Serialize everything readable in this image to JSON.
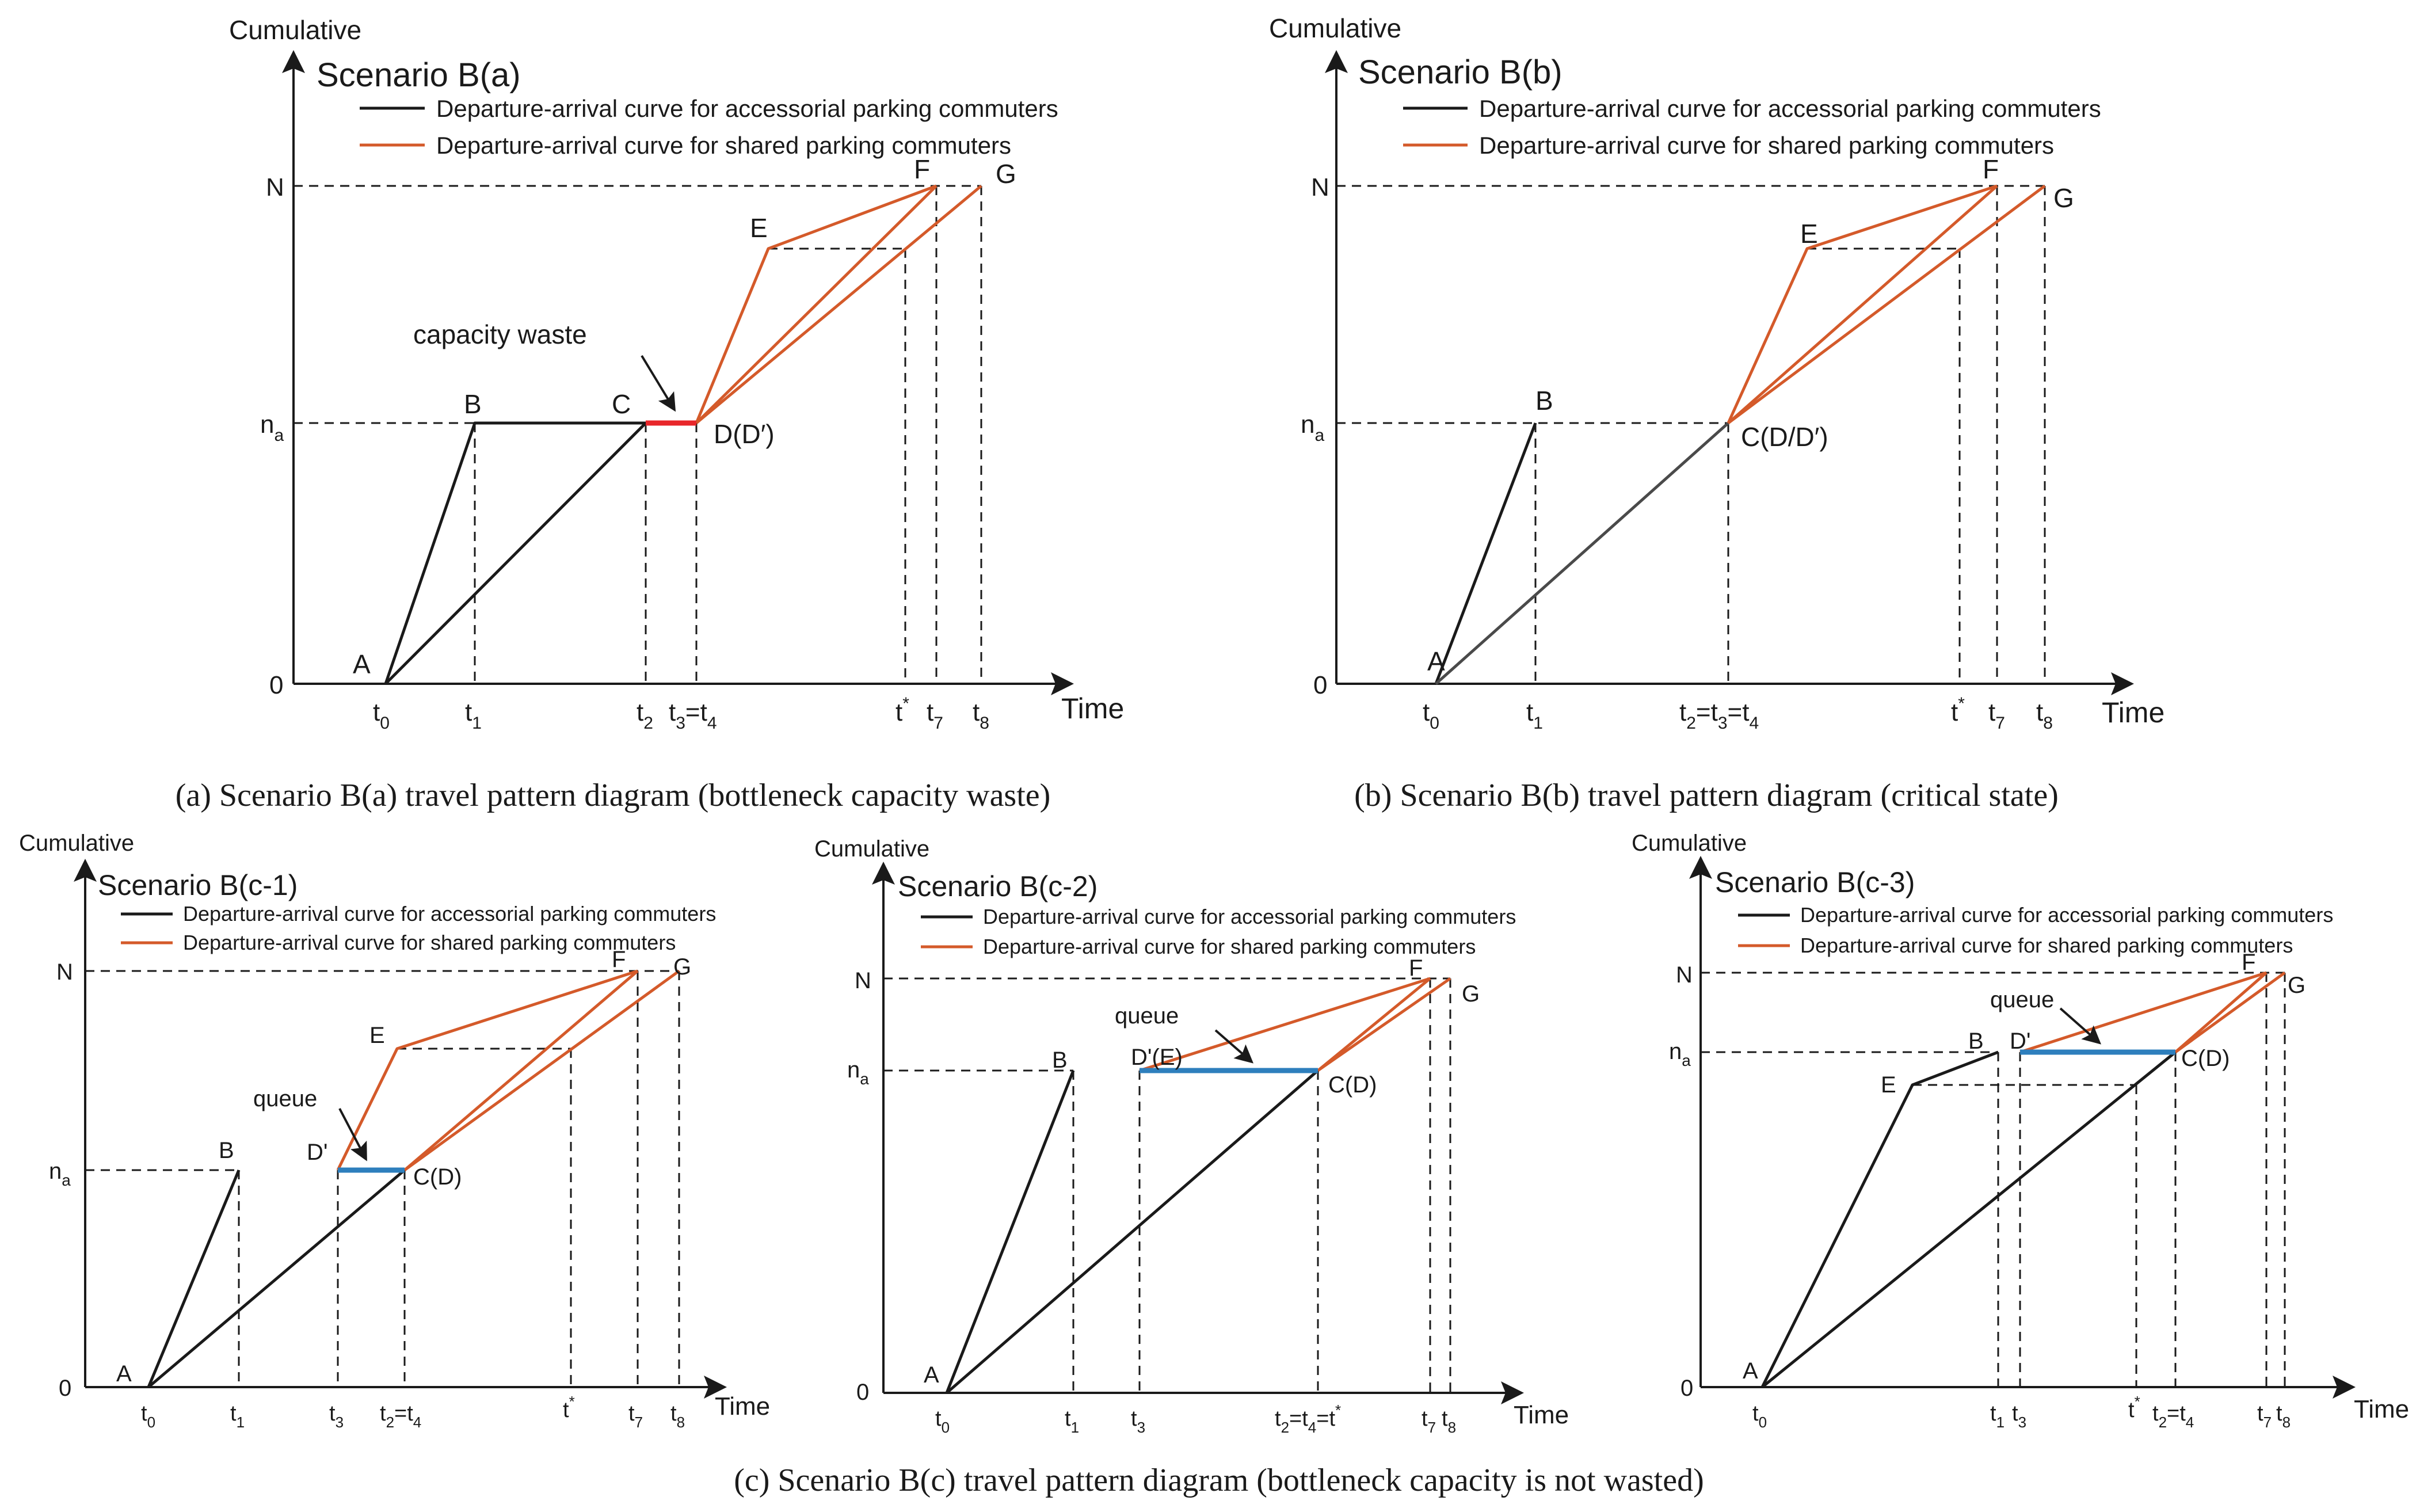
{
  "panels": {
    "a": {
      "y_axis_label": "Cumulative",
      "x_axis_label": "Time",
      "scenario_title": "Scenario B(a)",
      "legend_black": "Departure-arrival curve for accessorial parking commuters",
      "legend_orange": "Departure-arrival curve for shared parking commuters",
      "y_tick_N": "N",
      "y_tick_na": "n",
      "y_tick_na_sub": "a",
      "y_tick_0": "0",
      "pt_A": "A",
      "pt_B": "B",
      "pt_C": "C",
      "pt_D": "D(D′)",
      "pt_E": "E",
      "pt_F": "F",
      "pt_G": "G",
      "annotation": "capacity waste",
      "x_t0": "t",
      "x_t0_sub": "0",
      "x_t1": "t",
      "x_t1_sub": "1",
      "x_t2": "t",
      "x_t2_sub": "2",
      "x_t34": "t",
      "x_t34_sub": "3",
      "x_t34_rest": "=t",
      "x_t34_sub2": "4",
      "x_tstar": "t",
      "x_tstar_sup": "*",
      "x_t7": "t",
      "x_t7_sub": "7",
      "x_t8": "t",
      "x_t8_sub": "8",
      "caption": "(a) Scenario B(a) travel pattern diagram (bottleneck capacity waste)"
    },
    "b": {
      "y_axis_label": "Cumulative",
      "x_axis_label": "Time",
      "scenario_title": "Scenario B(b)",
      "legend_black": "Departure-arrival curve for accessorial parking commuters",
      "legend_orange": "Departure-arrival curve for shared parking commuters",
      "y_tick_N": "N",
      "y_tick_na": "n",
      "y_tick_na_sub": "a",
      "y_tick_0": "0",
      "pt_A": "A",
      "pt_B": "B",
      "pt_C": "C(D/D′)",
      "pt_E": "E",
      "pt_F": "F",
      "pt_G": "G",
      "x_t0": "t",
      "x_t0_sub": "0",
      "x_t1": "t",
      "x_t1_sub": "1",
      "x_t234": "t",
      "x_t234_sub": "2",
      "x_t234_rest": "=t",
      "x_t234_sub2": "3",
      "x_t234_rest2": "=t",
      "x_t234_sub3": "4",
      "x_tstar": "t",
      "x_tstar_sup": "*",
      "x_t7": "t",
      "x_t7_sub": "7",
      "x_t8": "t",
      "x_t8_sub": "8",
      "caption": "(b) Scenario B(b) travel pattern diagram (critical state)"
    },
    "c1": {
      "y_axis_label": "Cumulative",
      "x_axis_label": "Time",
      "scenario_title": "Scenario B(c-1)",
      "legend_black": "Departure-arrival curve for accessorial parking commuters",
      "legend_orange": "Departure-arrival curve for shared parking commuters",
      "y_tick_N": "N",
      "y_tick_na": "n",
      "y_tick_na_sub": "a",
      "y_tick_0": "0",
      "pt_A": "A",
      "pt_B": "B",
      "pt_C": "C(D)",
      "pt_Dp": "D'",
      "pt_E": "E",
      "pt_F": "F",
      "pt_G": "G",
      "annotation": "queue",
      "x_t0": "t",
      "x_t0_sub": "0",
      "x_t1": "t",
      "x_t1_sub": "1",
      "x_t3": "t",
      "x_t3_sub": "3",
      "x_t24": "t",
      "x_t24_sub": "2",
      "x_t24_rest": "=t",
      "x_t24_sub2": "4",
      "x_tstar": "t",
      "x_tstar_sup": "*",
      "x_t7": "t",
      "x_t7_sub": "7",
      "x_t8": "t",
      "x_t8_sub": "8"
    },
    "c2": {
      "y_axis_label": "Cumulative",
      "x_axis_label": "Time",
      "scenario_title": "Scenario B(c-2)",
      "legend_black": "Departure-arrival curve for accessorial parking commuters",
      "legend_orange": "Departure-arrival curve for shared parking commuters",
      "y_tick_N": "N",
      "y_tick_na": "n",
      "y_tick_na_sub": "a",
      "y_tick_0": "0",
      "pt_A": "A",
      "pt_B": "B",
      "pt_C": "C(D)",
      "pt_DE": "D'(E)",
      "pt_F": "F",
      "pt_G": "G",
      "annotation": "queue",
      "x_t0": "t",
      "x_t0_sub": "0",
      "x_t1": "t",
      "x_t1_sub": "1",
      "x_t3": "t",
      "x_t3_sub": "3",
      "x_t24s": "t",
      "x_t24s_sub": "2",
      "x_t24s_rest": "=t",
      "x_t24s_sub2": "4",
      "x_t24s_rest2": "=t",
      "x_t24s_sup": "*",
      "x_t7": "t",
      "x_t7_sub": "7",
      "x_t8": "t",
      "x_t8_sub": "8"
    },
    "c3": {
      "y_axis_label": "Cumulative",
      "x_axis_label": "Time",
      "scenario_title": "Scenario B(c-3)",
      "legend_black": "Departure-arrival curve for accessorial parking commuters",
      "legend_orange": "Departure-arrival curve for shared parking commuters",
      "y_tick_N": "N",
      "y_tick_na": "n",
      "y_tick_na_sub": "a",
      "y_tick_0": "0",
      "pt_A": "A",
      "pt_B": "B",
      "pt_C": "C(D)",
      "pt_Dp": "D'",
      "pt_E": "E",
      "pt_F": "F",
      "pt_G": "G",
      "annotation": "queue",
      "x_t0": "t",
      "x_t0_sub": "0",
      "x_t1": "t",
      "x_t1_sub": "1",
      "x_t3": "t",
      "x_t3_sub": "3",
      "x_tstar": "t",
      "x_tstar_sup": "*",
      "x_t24": "t",
      "x_t24_sub": "2",
      "x_t24_rest": "=t",
      "x_t24_sub2": "4",
      "x_t7": "t",
      "x_t7_sub": "7",
      "x_t8": "t",
      "x_t8_sub": "8"
    }
  },
  "caption_c": "(c) Scenario B(c) travel pattern diagram (bottleneck capacity is not wasted)",
  "colors": {
    "black_curve": "#1a1a1a",
    "orange_curve": "#d45a2a",
    "capacity_waste": "#e8262a",
    "queue": "#2e7fbd"
  }
}
